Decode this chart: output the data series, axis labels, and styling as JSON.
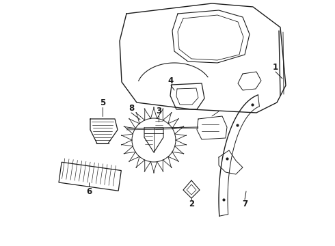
{
  "background_color": "#ffffff",
  "line_color": "#1a1a1a",
  "fig_width": 4.9,
  "fig_height": 3.6,
  "dpi": 100,
  "label_fontsize": 8.5
}
